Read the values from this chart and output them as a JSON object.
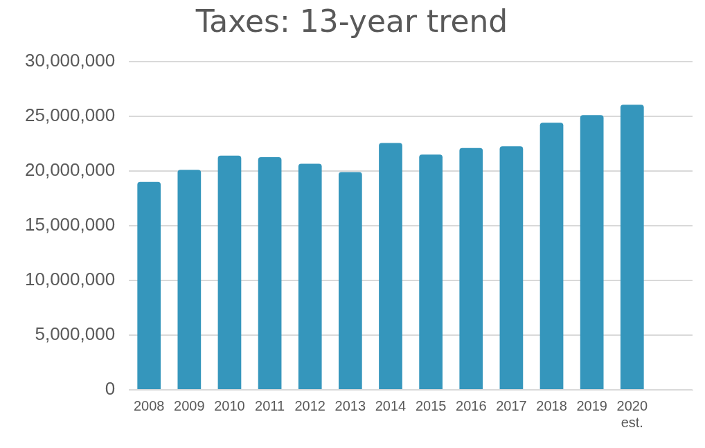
{
  "chart_data": {
    "type": "bar",
    "title": "Taxes: 13-year trend",
    "categories": [
      "2008",
      "2009",
      "2010",
      "2011",
      "2012",
      "2013",
      "2014",
      "2015",
      "2016",
      "2017",
      "2018",
      "2019",
      "2020\nest.",
      null
    ],
    "values": [
      19000000,
      20100000,
      21400000,
      21250000,
      20650000,
      19900000,
      22550000,
      21500000,
      22100000,
      22250000,
      24400000,
      25100000,
      26050000,
      null
    ],
    "color": "#3596bc",
    "ylim": [
      0,
      30000000
    ],
    "yticks": [
      0,
      {
        "value": 5000000,
        "label": "5,000,000"
      },
      {
        "value": 10000000,
        "label": "10,000,000"
      },
      {
        "value": 15000000,
        "label": "15,000,000"
      },
      {
        "value": 20000000,
        "label": "20,000,000"
      },
      {
        "value": 25000000,
        "label": "25,000,000"
      },
      {
        "value": 30000000,
        "label": "30,000,000"
      }
    ],
    "grid": "y",
    "legend": false
  }
}
